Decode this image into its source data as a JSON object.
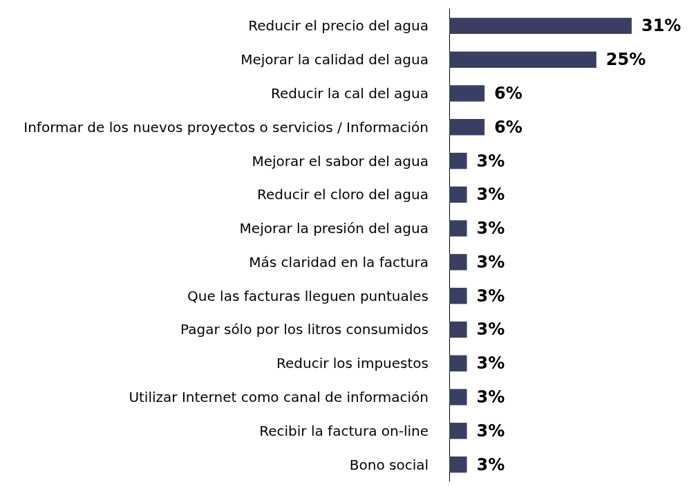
{
  "chart_data": {
    "type": "bar",
    "orientation": "horizontal",
    "categories": [
      "Reducir el precio del agua",
      "Mejorar la calidad del agua",
      "Reducir la cal del agua",
      "Informar de los nuevos proyectos o servicios / Información",
      "Mejorar el sabor del agua",
      "Reducir el cloro del agua",
      "Mejorar la presión del agua",
      "Más claridad en la factura",
      "Que las facturas lleguen puntuales",
      "Pagar sólo por los litros consumidos",
      "Reducir los impuestos",
      "Utilizar Internet como canal de información",
      "Recibir la factura on-line",
      "Bono social"
    ],
    "values": [
      31,
      25,
      6,
      6,
      3,
      3,
      3,
      3,
      3,
      3,
      3,
      3,
      3,
      3
    ],
    "value_labels": [
      "31%",
      "25%",
      "6%",
      "6%",
      "3%",
      "3%",
      "3%",
      "3%",
      "3%",
      "3%",
      "3%",
      "3%",
      "3%",
      "3%"
    ],
    "color": "#383f63"
  }
}
